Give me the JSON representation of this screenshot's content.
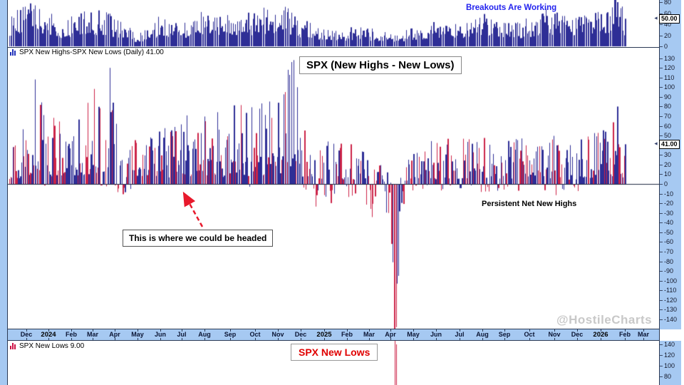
{
  "chart": {
    "watermark": "@HostileCharts",
    "labels": {
      "main": "SPX New Highs-SPX New Lows (Daily) 41.00",
      "lows": "SPX New Lows 9.00"
    },
    "annotations": {
      "breakouts": "Breakouts Are Working",
      "main_title": "SPX (New Highs - New Lows)",
      "headed": "This is where we could be headed",
      "persistent": "Persistent Net New Highs",
      "lows_title": "SPX New Lows"
    },
    "axis": {
      "months": [
        {
          "t": "Dec"
        },
        {
          "t": "2024",
          "y": true
        },
        {
          "t": "Feb"
        },
        {
          "t": "Mar"
        },
        {
          "t": "Apr"
        },
        {
          "t": "May"
        },
        {
          "t": "Jun"
        },
        {
          "t": "Jul"
        },
        {
          "t": "Aug"
        },
        {
          "t": "Sep"
        },
        {
          "t": "Oct"
        },
        {
          "t": "Nov"
        },
        {
          "t": "Dec"
        },
        {
          "t": "2025",
          "y": true
        },
        {
          "t": "Feb"
        },
        {
          "t": "Mar"
        },
        {
          "t": "Apr"
        },
        {
          "t": "May"
        },
        {
          "t": "Jun"
        },
        {
          "t": "Jul"
        },
        {
          "t": "Aug"
        },
        {
          "t": "Sep"
        },
        {
          "t": "Oct"
        },
        {
          "t": "Nov"
        },
        {
          "t": "Dec"
        },
        {
          "t": "2026",
          "y": true
        },
        {
          "t": "Feb"
        },
        {
          "t": "Mar"
        }
      ]
    },
    "scales": {
      "top": {
        "ticks": [
          80,
          60,
          40,
          20,
          0
        ],
        "box": "50.00"
      },
      "main": {
        "ticks": [
          130,
          120,
          110,
          100,
          90,
          80,
          70,
          60,
          50,
          30,
          20,
          10,
          0,
          -10,
          -20,
          -30,
          -40,
          -50,
          -60,
          -70,
          -80,
          -90,
          -100,
          -110,
          -120,
          -130,
          -140
        ],
        "box": "41.00"
      },
      "bottom": {
        "ticks": [
          140,
          120,
          100,
          80
        ]
      }
    },
    "colors": {
      "up": "#2e2e96",
      "down": "#cc2247",
      "bg": "#a6c9f2",
      "border": "#2b3a55",
      "annotation_blue": "#2222ee",
      "annotation_red": "#e00000",
      "arrow_red": "#e8192c",
      "watermark_gray": "#c8c8c8"
    }
  },
  "chart_data": [
    {
      "panel": "top",
      "type": "bar",
      "name": "breakout-indicator",
      "title": "Breakouts Are Working",
      "x_range": [
        "Nov 2023",
        "Feb 2026"
      ],
      "ylim": [
        0,
        88
      ],
      "grid": false,
      "last_value": 50.0,
      "side": "up",
      "envelope": [
        [
          0,
          55
        ],
        [
          0.02,
          78
        ],
        [
          0.05,
          80
        ],
        [
          0.09,
          45
        ],
        [
          0.12,
          75
        ],
        [
          0.16,
          62
        ],
        [
          0.19,
          38
        ],
        [
          0.21,
          22
        ],
        [
          0.24,
          55
        ],
        [
          0.28,
          48
        ],
        [
          0.31,
          65
        ],
        [
          0.34,
          55
        ],
        [
          0.38,
          62
        ],
        [
          0.42,
          72
        ],
        [
          0.45,
          75
        ],
        [
          0.47,
          55
        ],
        [
          0.5,
          42
        ],
        [
          0.53,
          30
        ],
        [
          0.56,
          38
        ],
        [
          0.6,
          30
        ],
        [
          0.625,
          22
        ],
        [
          0.65,
          32
        ],
        [
          0.68,
          45
        ],
        [
          0.71,
          55
        ],
        [
          0.74,
          50
        ],
        [
          0.77,
          60
        ],
        [
          0.8,
          55
        ],
        [
          0.83,
          48
        ],
        [
          0.86,
          58
        ],
        [
          0.875,
          72
        ],
        [
          0.9,
          60
        ],
        [
          0.93,
          55
        ],
        [
          0.96,
          68
        ],
        [
          0.985,
          86
        ],
        [
          1,
          55
        ]
      ],
      "spikes": [
        [
          0.982,
          86,
          "up"
        ],
        [
          0.988,
          80,
          "up"
        ],
        [
          0.994,
          72,
          "up"
        ],
        [
          1,
          50,
          "up"
        ]
      ]
    },
    {
      "panel": "main",
      "type": "bar",
      "name": "spx-net-new-highs",
      "title": "SPX (New Highs - New Lows)",
      "label": "SPX New Highs-SPX New Lows (Daily) 41.00",
      "x_range": [
        "Nov 2023",
        "Feb 2026"
      ],
      "ylim": [
        -150,
        131
      ],
      "grid": false,
      "last_value": 41.0,
      "envelope_pos": [
        [
          0,
          48
        ],
        [
          0.02,
          60
        ],
        [
          0.04,
          108
        ],
        [
          0.06,
          70
        ],
        [
          0.09,
          80
        ],
        [
          0.12,
          92
        ],
        [
          0.14,
          112
        ],
        [
          0.162,
          120
        ],
        [
          0.178,
          70
        ],
        [
          0.19,
          32
        ],
        [
          0.21,
          65
        ],
        [
          0.24,
          80
        ],
        [
          0.27,
          58
        ],
        [
          0.309,
          95
        ],
        [
          0.344,
          70
        ],
        [
          0.367,
          85
        ],
        [
          0.396,
          80
        ],
        [
          0.419,
          90
        ],
        [
          0.445,
          100
        ],
        [
          0.462,
          125
        ],
        [
          0.477,
          62
        ],
        [
          0.494,
          30
        ],
        [
          0.517,
          45
        ],
        [
          0.54,
          48
        ],
        [
          0.569,
          36
        ],
        [
          0.592,
          26
        ],
        [
          0.612,
          16
        ],
        [
          0.625,
          8
        ],
        [
          0.635,
          12
        ],
        [
          0.65,
          28
        ],
        [
          0.679,
          45
        ],
        [
          0.714,
          55
        ],
        [
          0.748,
          50
        ],
        [
          0.783,
          55
        ],
        [
          0.817,
          45
        ],
        [
          0.852,
          55
        ],
        [
          0.887,
          50
        ],
        [
          0.91,
          42
        ],
        [
          0.933,
          55
        ],
        [
          0.962,
          62
        ],
        [
          0.985,
          78
        ],
        [
          1,
          62
        ]
      ],
      "envelope_neg": [
        [
          0,
          3
        ],
        [
          0.15,
          4
        ],
        [
          0.185,
          12
        ],
        [
          0.22,
          8
        ],
        [
          0.25,
          14
        ],
        [
          0.28,
          5
        ],
        [
          0.42,
          4
        ],
        [
          0.46,
          5
        ],
        [
          0.475,
          12
        ],
        [
          0.494,
          32
        ],
        [
          0.52,
          28
        ],
        [
          0.54,
          12
        ],
        [
          0.569,
          20
        ],
        [
          0.592,
          38
        ],
        [
          0.61,
          28
        ],
        [
          0.62,
          55
        ],
        [
          0.6246,
          150
        ],
        [
          0.6293,
          103
        ],
        [
          0.64,
          25
        ],
        [
          0.66,
          8
        ],
        [
          0.7,
          8
        ],
        [
          0.75,
          10
        ],
        [
          0.8,
          12
        ],
        [
          0.83,
          8
        ],
        [
          0.87,
          10
        ],
        [
          0.91,
          15
        ],
        [
          0.94,
          6
        ],
        [
          1,
          4
        ]
      ],
      "spikes": [
        [
          0.0405,
          108,
          "up"
        ],
        [
          0.162,
          120,
          "up"
        ],
        [
          0.448,
          95,
          "down"
        ],
        [
          0.4527,
          118,
          "up"
        ],
        [
          0.4573,
          126,
          "up"
        ],
        [
          0.4619,
          128,
          "up"
        ],
        [
          0.4665,
          100,
          "up"
        ],
        [
          0.616,
          -30,
          "down"
        ],
        [
          0.6205,
          -62,
          "down"
        ],
        [
          0.624,
          -155,
          "down"
        ],
        [
          0.6258,
          -150,
          "down"
        ],
        [
          0.6276,
          -148,
          "down"
        ],
        [
          0.6295,
          -103,
          "up"
        ],
        [
          0.6313,
          -95,
          "up"
        ],
        [
          0.9875,
          80,
          "up"
        ],
        [
          1,
          41,
          "up"
        ]
      ]
    },
    {
      "panel": "bottom",
      "type": "bar",
      "name": "spx-new-lows",
      "title": "SPX New Lows",
      "label": "SPX New Lows 9.00",
      "x_range": [
        "Nov 2023",
        "Feb 2026"
      ],
      "ylim": [
        0,
        150
      ],
      "grid": false,
      "last_value": 9.0,
      "side": "down",
      "envelope": [
        [
          0,
          5
        ],
        [
          1,
          5
        ]
      ],
      "spikes": [
        [
          0.624,
          60,
          "down"
        ],
        [
          0.6258,
          150,
          "down"
        ],
        [
          0.6276,
          140,
          "down"
        ],
        [
          0.6295,
          36,
          "down"
        ]
      ]
    }
  ]
}
